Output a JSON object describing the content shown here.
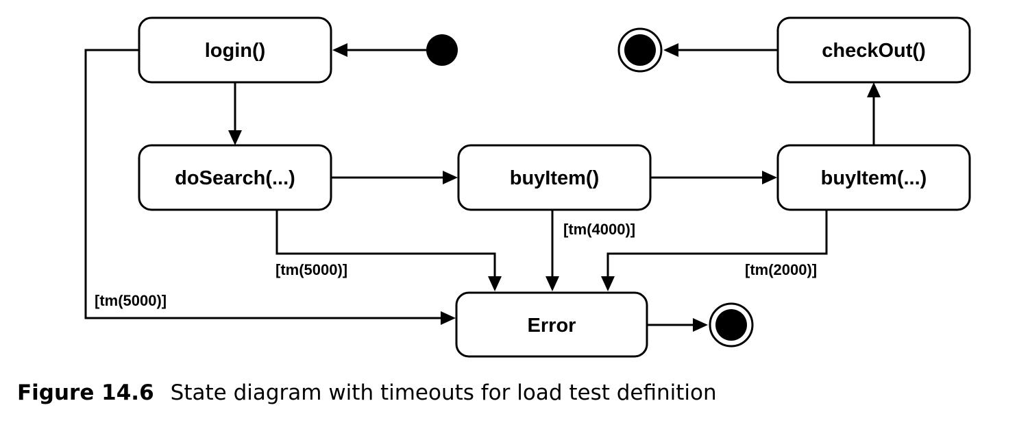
{
  "states": {
    "login": "login()",
    "do_search": "doSearch(...)",
    "buy_item": "buyItem()",
    "buy_item_args": "buyItem(...)",
    "check_out": "checkOut()",
    "error": "Error"
  },
  "guards": {
    "login_timeout": "[tm(5000)]",
    "search_timeout": "[tm(5000)]",
    "buy_item_timeout": "[tm(4000)]",
    "buy_item_args_timeout": "[tm(2000)]"
  },
  "caption": {
    "number": "Figure 14.6",
    "text": "State diagram with timeouts for load test definition"
  }
}
